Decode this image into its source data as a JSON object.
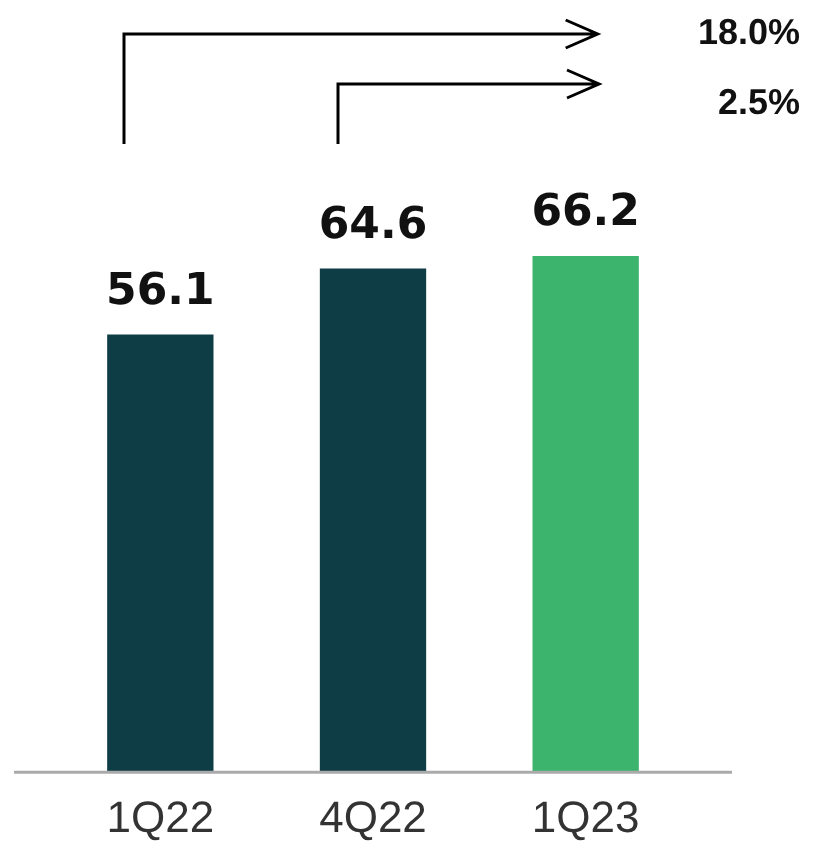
{
  "chart_data": {
    "type": "bar",
    "categories": [
      "1Q22",
      "4Q22",
      "1Q23"
    ],
    "values": [
      56.1,
      64.6,
      66.2
    ],
    "colors": [
      "#0f3d45",
      "#0f3d45",
      "#3db46d"
    ],
    "data_labels": true,
    "annotations": [
      "18.0%",
      "2.5%"
    ]
  }
}
